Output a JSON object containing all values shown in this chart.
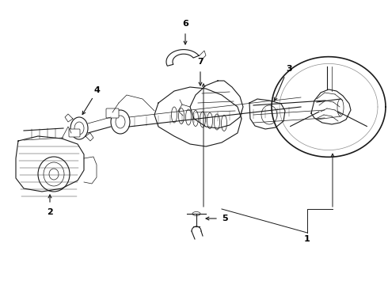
{
  "background_color": "#ffffff",
  "line_color": "#1a1a1a",
  "label_color": "#000000",
  "fig_width": 4.9,
  "fig_height": 3.6,
  "dpi": 100,
  "border_color": "#cccccc"
}
